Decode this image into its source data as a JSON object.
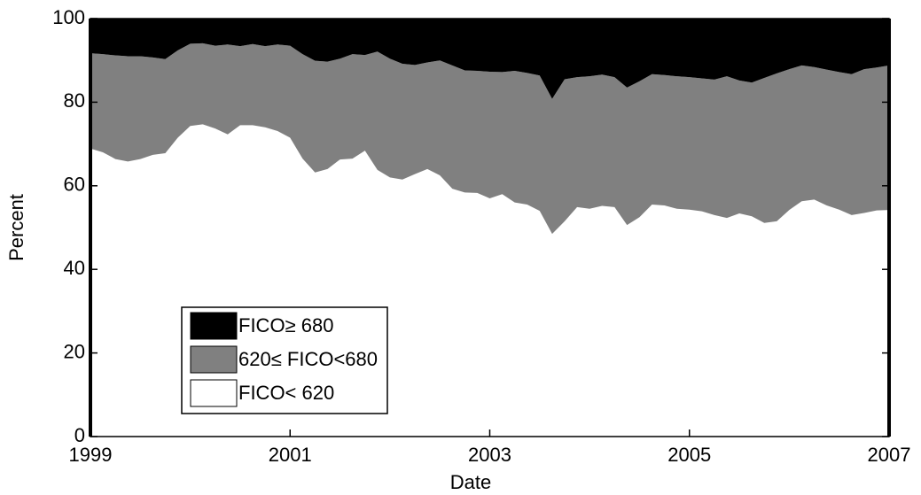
{
  "chart_data": {
    "type": "stacked-area",
    "xlabel": "Date",
    "ylabel": "Percent",
    "x": [
      1999,
      1999.125,
      1999.25,
      1999.375,
      1999.5,
      1999.625,
      1999.75,
      1999.875,
      2000,
      2000.125,
      2000.25,
      2000.375,
      2000.5,
      2000.625,
      2000.75,
      2000.875,
      2001,
      2001.125,
      2001.25,
      2001.375,
      2001.5,
      2001.625,
      2001.75,
      2001.875,
      2002,
      2002.125,
      2002.25,
      2002.375,
      2002.5,
      2002.625,
      2002.75,
      2002.875,
      2003,
      2003.125,
      2003.25,
      2003.375,
      2003.5,
      2003.625,
      2003.75,
      2003.875,
      2004,
      2004.125,
      2004.25,
      2004.375,
      2004.5,
      2004.625,
      2004.75,
      2004.875,
      2005,
      2005.125,
      2005.25,
      2005.375,
      2005.5,
      2005.625,
      2005.75,
      2005.875,
      2006,
      2006.125,
      2006.25,
      2006.375,
      2006.5,
      2006.625,
      2006.75,
      2006.875,
      2007
    ],
    "series": [
      {
        "name": "FICO< 620",
        "color": "#ffffff",
        "values": [
          68.9,
          68,
          66.4,
          65.8,
          66.4,
          67.4,
          67.8,
          71.5,
          74.3,
          74.7,
          73.7,
          72.3,
          74.5,
          74.5,
          74,
          73.1,
          71.5,
          66.5,
          63.2,
          64,
          66.3,
          66.5,
          68.4,
          63.8,
          62,
          61.5,
          62.8,
          64,
          62.5,
          59.3,
          58.4,
          58.3,
          57,
          58,
          56,
          55.5,
          54,
          48.5,
          51.5,
          54.9,
          54.5,
          55.2,
          54.9,
          50.6,
          52.5,
          55.5,
          55.3,
          54.5,
          54.3,
          53.9,
          53,
          52.3,
          53.4,
          52.7,
          51.1,
          51.5,
          54.2,
          56.3,
          56.7,
          55.3,
          54.3,
          53,
          53.5,
          54.1,
          54.2
        ]
      },
      {
        "name": "620≤ FICO<680",
        "color": "#808080",
        "values": [
          22.8,
          23.5,
          24.8,
          25.2,
          24.6,
          23.3,
          22.5,
          20.9,
          19.7,
          19.4,
          19.8,
          21.5,
          18.9,
          19.4,
          19.4,
          20.7,
          22,
          25,
          26.7,
          25.7,
          24.1,
          25,
          22.9,
          28.3,
          28.4,
          27.7,
          26.1,
          25.5,
          27.5,
          29.5,
          29.2,
          29.2,
          30.3,
          29.2,
          31.5,
          31.5,
          32.4,
          32.3,
          34,
          31.1,
          31.7,
          31.4,
          31.1,
          32.9,
          32.5,
          31.2,
          31.2,
          31.7,
          31.7,
          31.8,
          32.4,
          33.9,
          31.8,
          32,
          34.7,
          35.4,
          33.7,
          32.5,
          31.7,
          32.5,
          32.9,
          33.7,
          34.4,
          34.2,
          34.6
        ]
      },
      {
        "name": "FICO≥ 680",
        "color": "#000000",
        "values": [
          8.3,
          8.5,
          8.8,
          9,
          9,
          9.3,
          9.7,
          7.6,
          6,
          5.9,
          6.5,
          6.2,
          6.6,
          6.1,
          6.6,
          6.2,
          6.5,
          8.5,
          10.1,
          10.3,
          9.6,
          8.5,
          8.7,
          7.9,
          9.6,
          10.8,
          11.1,
          10.5,
          10,
          11.2,
          12.4,
          12.5,
          12.7,
          12.8,
          12.5,
          13,
          13.6,
          19.2,
          14.5,
          14,
          13.8,
          13.4,
          14,
          16.5,
          15,
          13.3,
          13.5,
          13.8,
          14,
          14.3,
          14.6,
          13.8,
          14.8,
          15.3,
          14.2,
          13.1,
          12.1,
          11.2,
          11.6,
          12.2,
          12.8,
          13.3,
          12.1,
          11.7,
          11.2
        ]
      }
    ],
    "xlim": [
      1999,
      2007
    ],
    "xticks": [
      1999,
      2001,
      2003,
      2005,
      2007
    ],
    "ylim": [
      0,
      100
    ],
    "yticks": [
      0,
      20,
      40,
      60,
      80,
      100
    ],
    "legend": "lower-left"
  }
}
